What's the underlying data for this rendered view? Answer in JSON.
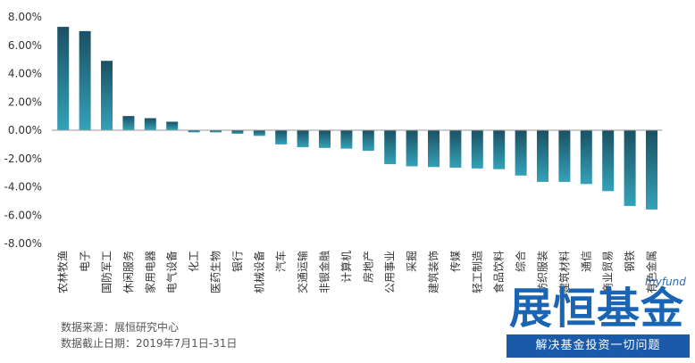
{
  "chart_data": {
    "type": "bar",
    "categories": [
      "农林牧渔",
      "电子",
      "国防军工",
      "休闲服务",
      "家用电器",
      "电气设备",
      "化工",
      "医药生物",
      "银行",
      "机械设备",
      "汽车",
      "交通运输",
      "非银金融",
      "计算机",
      "房地产",
      "公用事业",
      "采掘",
      "建筑装饰",
      "传媒",
      "轻工制造",
      "食品饮料",
      "综合",
      "纺织服装",
      "建筑材料",
      "通信",
      "商业贸易",
      "钢铁",
      "有色金属"
    ],
    "values": [
      7.3,
      7.0,
      4.9,
      1.0,
      0.85,
      0.6,
      -0.15,
      -0.15,
      -0.25,
      -0.4,
      -1.0,
      -1.2,
      -1.25,
      -1.3,
      -1.45,
      -2.4,
      -2.55,
      -2.6,
      -2.65,
      -2.7,
      -2.75,
      -3.2,
      -3.65,
      -3.65,
      -3.8,
      -4.3,
      -5.35,
      -5.6
    ],
    "ylim": [
      -8,
      8
    ],
    "yticks": [
      "8.00%",
      "6.00%",
      "4.00%",
      "2.00%",
      "0.00%",
      "-2.00%",
      "-4.00%",
      "-6.00%",
      "-8.00%"
    ],
    "colors": {
      "bar_top": "#1b5063",
      "bar_bottom": "#34a2b8",
      "axis": "#999999"
    }
  },
  "footer": {
    "source": "数据来源：展恒研究中心",
    "date_range": "数据截止日期：2019年7月1日-31日"
  },
  "watermark": {
    "small": "myfund",
    "big": "展恒基金",
    "slogan": "解决基金投资一切问题"
  }
}
